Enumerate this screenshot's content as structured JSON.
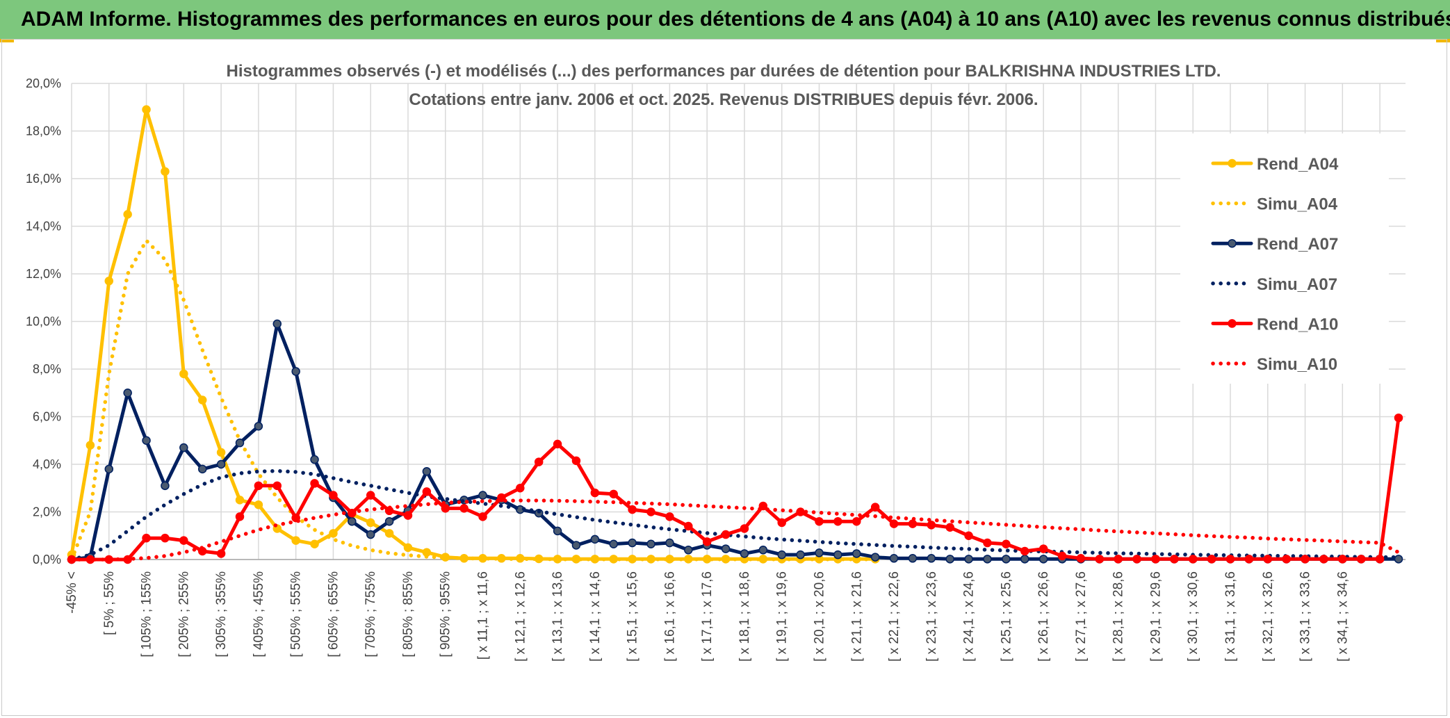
{
  "header": {
    "title": "ADAM Informe. Histogrammes des performances en euros pour des détentions de 4 ans (A04) à 10 ans (A10) avec les revenus connus distribués"
  },
  "colors": {
    "banner": "#7dc77d",
    "A04": "#ffc000",
    "A07": "#002060",
    "A10": "#ff0000",
    "grid": "#d9d9d9"
  },
  "chart_data": {
    "type": "line",
    "title_lines": [
      "Histogrammes observés (-) et modélisés (...) des performances par durées de détention pour BALKRISHNA INDUSTRIES LTD.",
      "Cotations entre janv. 2006 et oct. 2025. Revenus DISTRIBUES depuis févr. 2006."
    ],
    "y_ticks": [
      "0,0%",
      "2,0%",
      "4,0%",
      "6,0%",
      "8,0%",
      "10,0%",
      "12,0%",
      "14,0%",
      "16,0%",
      "18,0%",
      "20,0%"
    ],
    "ylim": [
      0,
      20
    ],
    "x_count": 72,
    "x_labels": [
      "-45% <",
      "[ 5% ; 55%",
      "[ 105% ; 155%",
      "[ 205% ; 255%",
      "[ 305% ; 355%",
      "[ 405% ; 455%",
      "[ 505% ; 555%",
      "[ 605% ; 655%",
      "[ 705% ; 755%",
      "[ 805% ; 855%",
      "[ 905% ; 955%",
      "[ x 11,1 ; x 11,6",
      "[ x 12,1 ; x 12,6",
      "[ x 13,1 ; x 13,6",
      "[ x 14,1 ; x 14,6",
      "[ x 15,1 ; x 15,6",
      "[ x 16,1 ; x 16,6",
      "[ x 17,1 ; x 17,6",
      "[ x 18,1 ; x 18,6",
      "[ x 19,1 ; x 19,6",
      "[ x 20,1 ; x 20,6",
      "[ x 21,1 ; x 21,6",
      "[ x 22,1 ; x 22,6",
      "[ x 23,1 ; x 23,6",
      "[ x 24,1 ; x 24,6",
      "[ x 25,1 ; x 25,6",
      "[ x 26,1 ; x 26,6",
      "[ x 27,1 ; x 27,6",
      "[ x 28,1 ; x 28,6",
      "[ x 29,1 ; x 29,6",
      "[ x 30,1 ; x 30,6",
      "[ x 31,1 ; x 31,6",
      "[ x 32,1 ; x 32,6",
      "[ x 33,1 ; x 33,6",
      "[ x 34,1 ; x 34,6"
    ],
    "series": [
      {
        "name": "Rend_A04",
        "color": "#ffc000",
        "style": "solid",
        "markers": true,
        "values": [
          0.2,
          4.8,
          11.7,
          14.5,
          18.9,
          16.3,
          7.8,
          6.7,
          4.5,
          2.5,
          2.3,
          1.3,
          0.8,
          0.65,
          1.1,
          1.9,
          1.55,
          1.1,
          0.5,
          0.3,
          0.1,
          0.05,
          0.05,
          0.05,
          0.05,
          0.03,
          0.02,
          0.02,
          0.02,
          0.02,
          0.02,
          0.02,
          0.02,
          0.02,
          0.02,
          0.02,
          0.02,
          0.02,
          0.02,
          0.02,
          0.02,
          0.02,
          0.02,
          0.02
        ]
      },
      {
        "name": "Simu_A04",
        "color": "#ffc000",
        "style": "dotted",
        "markers": false,
        "values": [
          0.0,
          2.0,
          7.8,
          12.0,
          13.4,
          12.6,
          10.9,
          8.8,
          6.8,
          5.0,
          3.6,
          2.6,
          1.8,
          1.25,
          0.85,
          0.58,
          0.4,
          0.27,
          0.18,
          0.12,
          0.08,
          0.05,
          0.04,
          0.03,
          0.02,
          0.02,
          0.01,
          0.01,
          0.01,
          0.01,
          0.01,
          0.01,
          0.01,
          0.01,
          0.01,
          0.01,
          0.01,
          0.01,
          0.01,
          0.01,
          0.01,
          0.01,
          0.01,
          0.01
        ]
      },
      {
        "name": "Rend_A07",
        "color": "#002060",
        "style": "solid",
        "markers": true,
        "values": [
          0.0,
          0.1,
          3.8,
          7.0,
          5.0,
          3.1,
          4.7,
          3.8,
          4.0,
          4.9,
          5.6,
          9.9,
          7.9,
          4.2,
          2.6,
          1.6,
          1.05,
          1.6,
          2.05,
          3.7,
          2.3,
          2.5,
          2.7,
          2.5,
          2.1,
          1.95,
          1.2,
          0.6,
          0.85,
          0.65,
          0.7,
          0.65,
          0.7,
          0.4,
          0.6,
          0.45,
          0.25,
          0.4,
          0.2,
          0.2,
          0.28,
          0.2,
          0.25,
          0.1,
          0.05,
          0.05,
          0.05,
          0.02,
          0.02,
          0.02,
          0.02,
          0.02,
          0.02,
          0.02,
          0.02,
          0.02,
          0.02,
          0.02,
          0.02,
          0.02,
          0.02,
          0.02,
          0.02,
          0.02,
          0.02,
          0.02,
          0.02,
          0.02,
          0.02,
          0.02,
          0.02,
          0.02
        ]
      },
      {
        "name": "Simu_A07",
        "color": "#002060",
        "style": "dotted",
        "markers": false,
        "values": [
          0.0,
          0.2,
          0.6,
          1.2,
          1.8,
          2.3,
          2.75,
          3.15,
          3.45,
          3.62,
          3.7,
          3.72,
          3.68,
          3.58,
          3.42,
          3.25,
          3.1,
          2.95,
          2.8,
          2.65,
          2.55,
          2.45,
          2.35,
          2.25,
          2.15,
          2.02,
          1.9,
          1.78,
          1.66,
          1.56,
          1.46,
          1.36,
          1.27,
          1.19,
          1.11,
          1.04,
          0.97,
          0.9,
          0.84,
          0.79,
          0.74,
          0.69,
          0.65,
          0.61,
          0.57,
          0.54,
          0.5,
          0.47,
          0.44,
          0.41,
          0.38,
          0.36,
          0.34,
          0.32,
          0.3,
          0.28,
          0.26,
          0.25,
          0.23,
          0.22,
          0.2,
          0.19,
          0.18,
          0.17,
          0.16,
          0.15,
          0.14,
          0.13,
          0.12,
          0.11,
          0.1,
          0.1
        ]
      },
      {
        "name": "Rend_A10",
        "color": "#ff0000",
        "style": "solid",
        "markers": true,
        "values": [
          0.0,
          0.0,
          0.0,
          0.0,
          0.9,
          0.9,
          0.8,
          0.35,
          0.25,
          1.8,
          3.1,
          3.1,
          1.75,
          3.2,
          2.7,
          1.95,
          2.7,
          2.05,
          1.85,
          2.85,
          2.15,
          2.15,
          1.8,
          2.6,
          3.0,
          4.1,
          4.85,
          4.15,
          2.8,
          2.75,
          2.1,
          2.0,
          1.8,
          1.4,
          0.75,
          1.05,
          1.3,
          2.25,
          1.55,
          2.0,
          1.6,
          1.6,
          1.6,
          2.2,
          1.5,
          1.5,
          1.45,
          1.35,
          1.0,
          0.7,
          0.65,
          0.35,
          0.45,
          0.15,
          0.05,
          0.02,
          0.02,
          0.02,
          0.02,
          0.02,
          0.02,
          0.02,
          0.02,
          0.02,
          0.02,
          0.02,
          0.02,
          0.02,
          0.02,
          0.02,
          0.02,
          5.95
        ]
      },
      {
        "name": "Simu_A10",
        "color": "#ff0000",
        "style": "dotted",
        "markers": false,
        "values": [
          0.0,
          0.0,
          0.0,
          0.02,
          0.06,
          0.15,
          0.3,
          0.5,
          0.75,
          1.0,
          1.25,
          1.45,
          1.6,
          1.75,
          1.88,
          2.0,
          2.1,
          2.18,
          2.25,
          2.32,
          2.38,
          2.42,
          2.45,
          2.47,
          2.48,
          2.48,
          2.47,
          2.45,
          2.43,
          2.41,
          2.38,
          2.35,
          2.32,
          2.28,
          2.24,
          2.2,
          2.16,
          2.12,
          2.07,
          2.02,
          1.97,
          1.92,
          1.87,
          1.82,
          1.76,
          1.71,
          1.66,
          1.61,
          1.56,
          1.51,
          1.46,
          1.41,
          1.36,
          1.31,
          1.27,
          1.22,
          1.18,
          1.14,
          1.1,
          1.06,
          1.02,
          0.98,
          0.95,
          0.92,
          0.88,
          0.85,
          0.82,
          0.79,
          0.76,
          0.73,
          0.7,
          0.3
        ]
      }
    ],
    "legend": [
      "Rend_A04",
      "Simu_A04",
      "Rend_A07",
      "Simu_A07",
      "Rend_A10",
      "Simu_A10"
    ],
    "legend_position": "right"
  }
}
